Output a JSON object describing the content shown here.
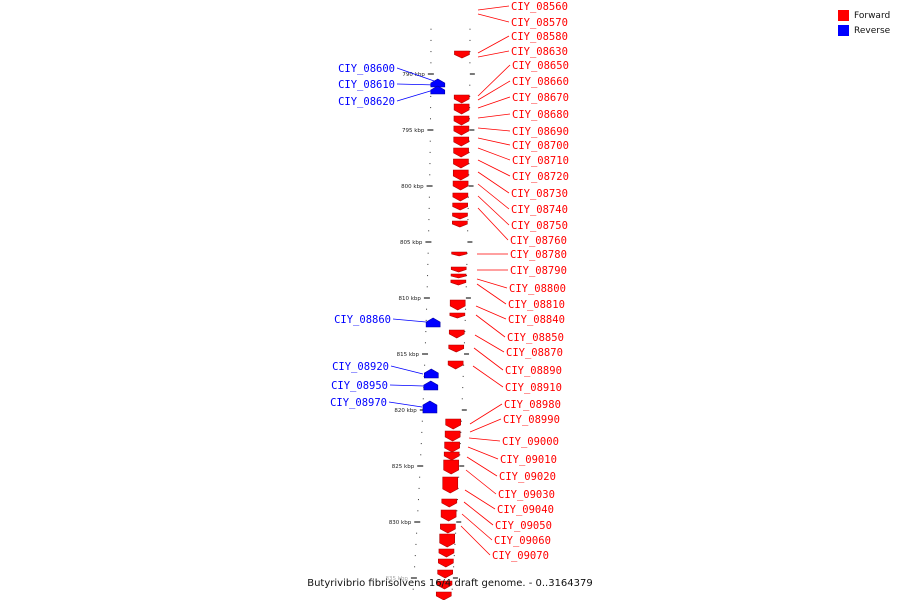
{
  "legend": {
    "forward_label": "Forward",
    "reverse_label": "Reverse",
    "forward_color": "#ff0000",
    "reverse_color": "#0000ff"
  },
  "caption": "Butyrivibrio fibrisolvens 16/4 draft genome. - 0..3164379",
  "ticks": [
    "785 kbp",
    "790 kbp",
    "795 kbp",
    "800 kbp",
    "805 kbp",
    "810 kbp",
    "815 kbp",
    "820 kbp",
    "825 kbp",
    "830 kbp",
    "835 kbp"
  ],
  "forward_genes": [
    "CIY_08560",
    "CIY_08570",
    "CIY_08580",
    "CIY_08630",
    "CIY_08650",
    "CIY_08660",
    "CIY_08670",
    "CIY_08680",
    "CIY_08690",
    "CIY_08700",
    "CIY_08710",
    "CIY_08720",
    "CIY_08730",
    "CIY_08740",
    "CIY_08750",
    "CIY_08760",
    "CIY_08780",
    "CIY_08790",
    "CIY_08800",
    "CIY_08810",
    "CIY_08840",
    "CIY_08850",
    "CIY_08870",
    "CIY_08890",
    "CIY_08910",
    "CIY_08980",
    "CIY_08990",
    "CIY_09000",
    "CIY_09010",
    "CIY_09020",
    "CIY_09030",
    "CIY_09040",
    "CIY_09050",
    "CIY_09060",
    "CIY_09070"
  ],
  "reverse_genes": [
    "CIY_08600",
    "CIY_08610",
    "CIY_08620",
    "CIY_08860",
    "CIY_08920",
    "CIY_08950",
    "CIY_08970"
  ]
}
